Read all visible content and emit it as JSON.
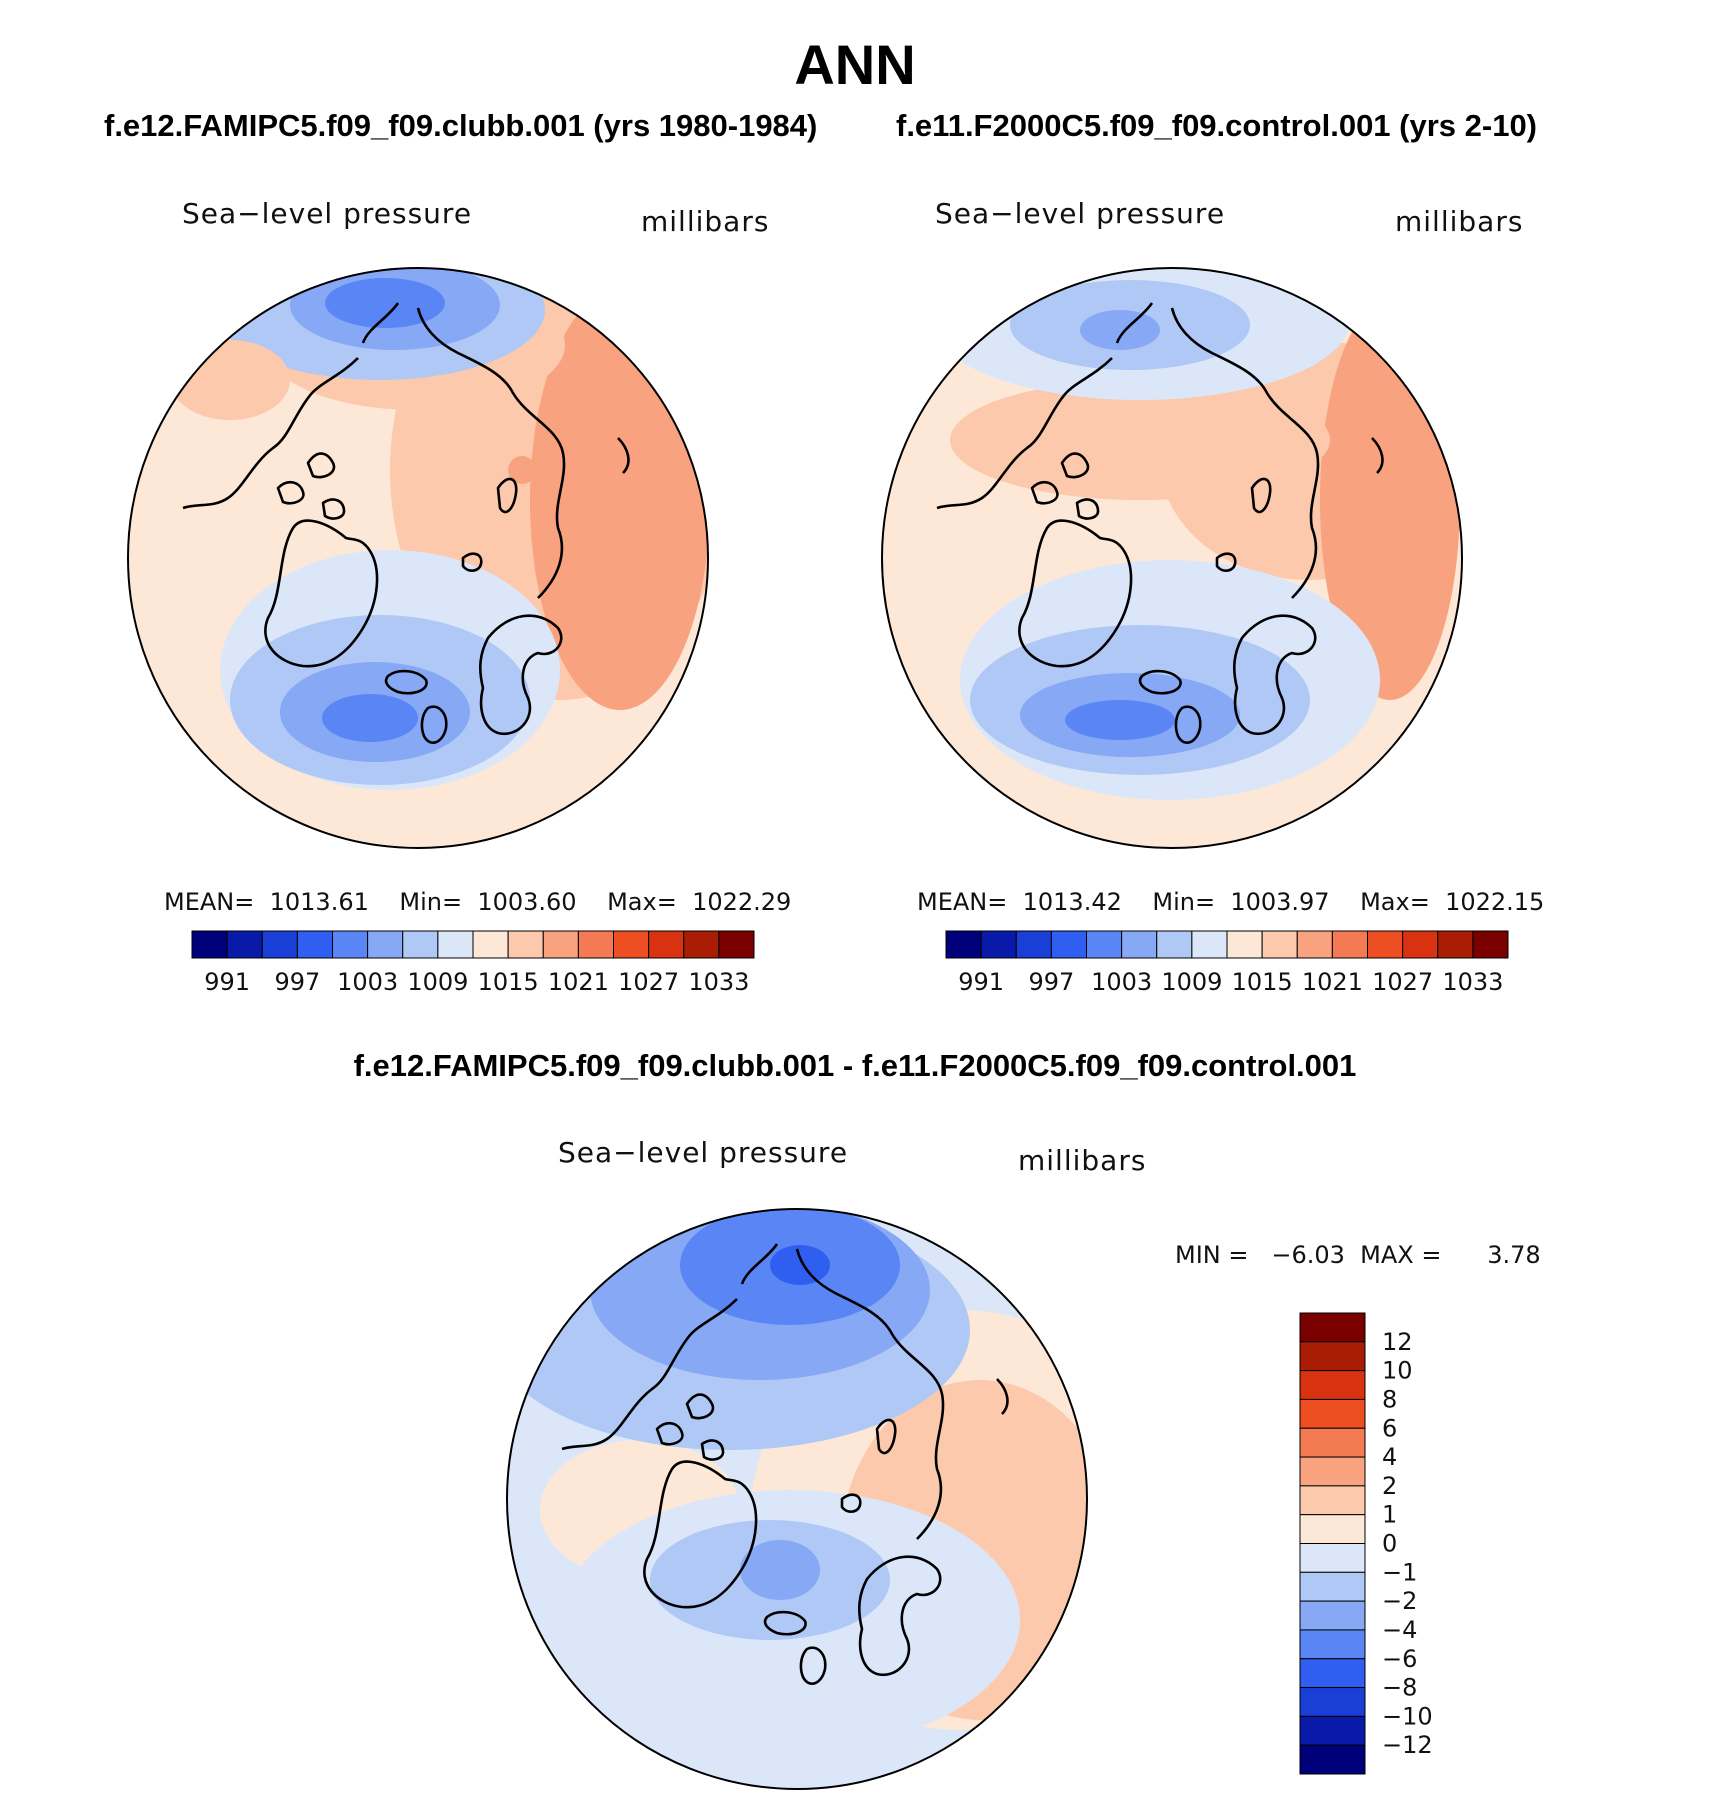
{
  "title": "ANN",
  "panels": [
    {
      "case_title": "f.e12.FAMIPC5.f09_f09.clubb.001 (yrs 1980-1984)",
      "variable": "Sea−level pressure",
      "units": "millibars",
      "stats_label": "MEAN=  1013.61    Min=  1003.60    Max=  1022.29"
    },
    {
      "case_title": "f.e11.F2000C5.f09_f09.control.001 (yrs 2-10)",
      "variable": "Sea−level pressure",
      "units": "millibars",
      "stats_label": "MEAN=  1013.42    Min=  1003.97    Max=  1022.15"
    }
  ],
  "diff_panel": {
    "title": "f.e12.FAMIPC5.f09_f09.clubb.001 - f.e11.F2000C5.f09_f09.control.001",
    "variable": "Sea−level pressure",
    "units": "millibars",
    "stats_label": "MIN =   −6.03  MAX =      3.78"
  },
  "colorbar_abs": {
    "colors": [
      "#00007a",
      "#0a1aa8",
      "#1a3fd6",
      "#2f5ef0",
      "#5a86f5",
      "#86a8f5",
      "#b0c8f5",
      "#dbe7f8",
      "#fde8d8",
      "#fcc9ac",
      "#f9a27f",
      "#f37a52",
      "#ee4f22",
      "#d93210",
      "#a91d05",
      "#7a0000"
    ],
    "tick_labels": [
      "991",
      "997",
      "1003",
      "1009",
      "1015",
      "1021",
      "1027",
      "1033"
    ]
  },
  "colorbar_diff": {
    "colors": [
      "#00007a",
      "#0a1aa8",
      "#1a3fd6",
      "#2f5ef0",
      "#5a86f5",
      "#86a8f5",
      "#b0c8f5",
      "#dbe7f8",
      "#fde8d8",
      "#fcc9ac",
      "#f9a27f",
      "#f37a52",
      "#ee4f22",
      "#d93210",
      "#a91d05",
      "#7a0000"
    ],
    "tick_labels": [
      "12",
      "10",
      "8",
      "6",
      "4",
      "2",
      "1",
      "0",
      "−1",
      "−2",
      "−4",
      "−6",
      "−8",
      "−10",
      "−12"
    ]
  }
}
